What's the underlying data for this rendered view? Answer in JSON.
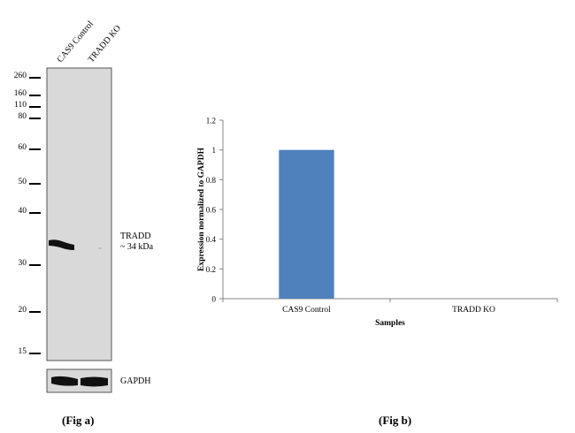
{
  "western_blot": {
    "lanes": [
      "CAS9 Control",
      "TRADD KO"
    ],
    "mw_markers": [
      {
        "label": "260",
        "kda": 260
      },
      {
        "label": "160",
        "kda": 160
      },
      {
        "label": "110",
        "kda": 110
      },
      {
        "label": "80",
        "kda": 80
      },
      {
        "label": "60",
        "kda": 60
      },
      {
        "label": "50",
        "kda": 50
      },
      {
        "label": "40",
        "kda": 40
      },
      {
        "label": "30",
        "kda": 30
      },
      {
        "label": "20",
        "kda": 20
      },
      {
        "label": "15",
        "kda": 15
      }
    ],
    "target_label_line1": "TRADD",
    "target_label_line2": "~ 34 kDa",
    "target_mw_kda": 34,
    "loading_control_label": "GAPDH",
    "membrane_color": "#d9d9d9",
    "band_color": "#111111",
    "caption": "(Fig a)"
  },
  "chart_data": {
    "type": "bar",
    "categories": [
      "CAS9 Control",
      "TRADD KO"
    ],
    "values": [
      1,
      0
    ],
    "ylabel": "Expression  normalized to GAPDH",
    "xlabel": "Samples",
    "ylim": [
      0,
      1.2
    ],
    "yticks": [
      0,
      0.2,
      0.4,
      0.6,
      0.8,
      1,
      1.2
    ],
    "ytick_labels": [
      "0",
      "0.2",
      "0.4",
      "0.6",
      "0.8",
      "1",
      "1.2"
    ],
    "bar_color": "#4f81bd",
    "grid": false,
    "caption": "(Fig b)"
  }
}
